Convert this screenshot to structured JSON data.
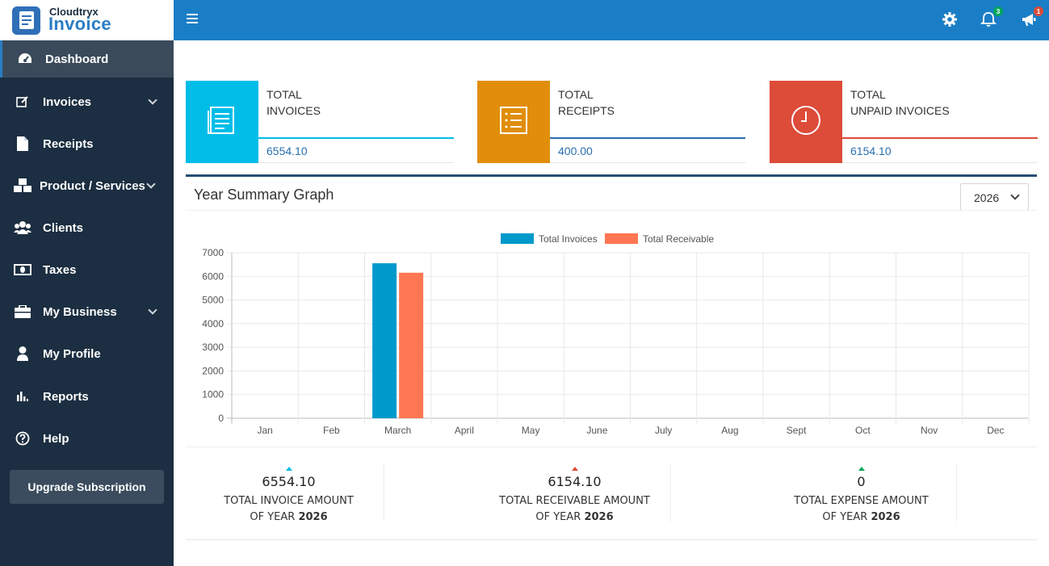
{
  "brand": {
    "small": "Cloudtryx",
    "big": "Invoice"
  },
  "nav": [
    {
      "label": "Dashboard",
      "icon": "dashboard-icon",
      "active": true
    },
    {
      "label": "Invoices",
      "icon": "edit-icon",
      "chevron": true
    },
    {
      "label": "Receipts",
      "icon": "file-icon"
    },
    {
      "label": "Product / Services",
      "icon": "boxes-icon",
      "chevron": true
    },
    {
      "label": "Clients",
      "icon": "users-icon"
    },
    {
      "label": "Taxes",
      "icon": "money-icon"
    },
    {
      "label": "My Business",
      "icon": "briefcase-icon",
      "chevron": true
    },
    {
      "label": "My Profile",
      "icon": "user-icon"
    },
    {
      "label": "Reports",
      "icon": "bar-chart-icon"
    },
    {
      "label": "Help",
      "icon": "question-circle-icon"
    }
  ],
  "upgrade_label": "Upgrade Subscription",
  "topbar": {
    "notifications_count": "3",
    "announcements_count": "1"
  },
  "cards": [
    {
      "title_line1": "TOTAL",
      "title_line2": "INVOICES",
      "value": "6554.10",
      "color": "#00bde8",
      "line_color": "#00bde8",
      "icon": "invoice-icon"
    },
    {
      "title_line1": "TOTAL",
      "title_line2": "RECEIPTS",
      "value": "400.00",
      "color": "#e08e0b",
      "line_color": "#2a6fb0",
      "icon": "list-icon"
    },
    {
      "title_line1": "TOTAL",
      "title_line2": "UNPAID INVOICES",
      "value": "6154.10",
      "color": "#dd4b39",
      "line_color": "#dd4b39",
      "icon": "clock-icon"
    }
  ],
  "summary": {
    "title": "Year Summary Graph",
    "year": "2026"
  },
  "chart_data": {
    "type": "bar",
    "categories": [
      "Jan",
      "Feb",
      "March",
      "April",
      "May",
      "June",
      "July",
      "Aug",
      "Sept",
      "Oct",
      "Nov",
      "Dec"
    ],
    "series": [
      {
        "name": "Total Invoices",
        "color": "#0099cc",
        "values": [
          0,
          0,
          6554.1,
          0,
          0,
          0,
          0,
          0,
          0,
          0,
          0,
          0
        ]
      },
      {
        "name": "Total Receivable",
        "color": "#ff7752",
        "values": [
          0,
          0,
          6154.1,
          0,
          0,
          0,
          0,
          0,
          0,
          0,
          0,
          0
        ]
      }
    ],
    "yticks": [
      0,
      1000,
      2000,
      3000,
      4000,
      5000,
      6000,
      7000
    ],
    "ylim": [
      0,
      7000
    ],
    "grid": true,
    "legend": "top-center"
  },
  "totals": [
    {
      "value": "6554.10",
      "label": "TOTAL INVOICE AMOUNT",
      "sub": "OF YEAR",
      "year": "2026",
      "arrow_color": "#00bde8"
    },
    {
      "value": "6154.10",
      "label": "TOTAL RECEIVABLE AMOUNT",
      "sub": "OF YEAR",
      "year": "2026",
      "arrow_color": "#dd4b39"
    },
    {
      "value": "0",
      "label": "TOTAL EXPENSE AMOUNT",
      "sub": "OF YEAR",
      "year": "2026",
      "arrow_color": "#00a65a"
    }
  ]
}
